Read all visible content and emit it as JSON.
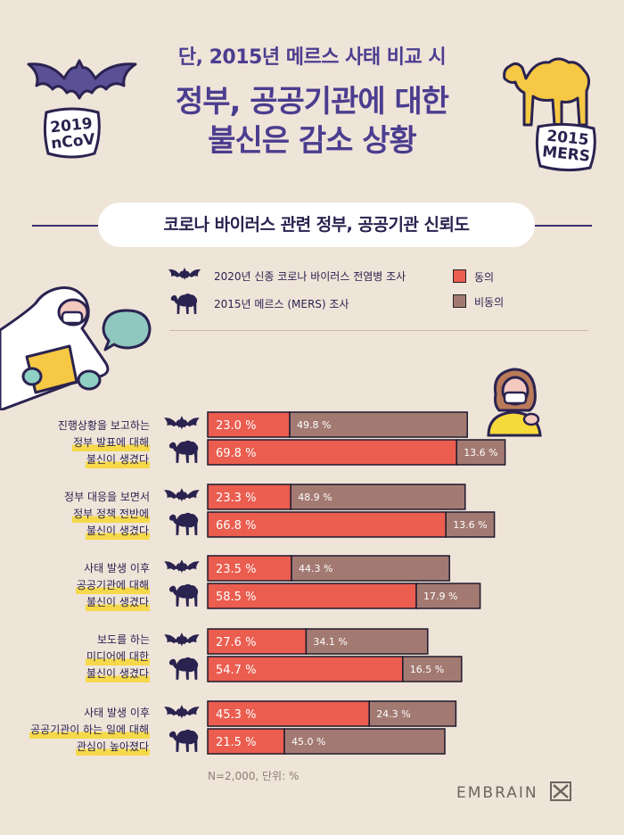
{
  "header": {
    "subtitle": "단, 2015년 메르스 사태 비교 시",
    "title_line1": "정부, 공공기관에 대한",
    "title_line2": "불신은 감소 상황"
  },
  "stickers": {
    "left_line1": "2019",
    "left_line2": "nCoV",
    "right_line1": "2015",
    "right_line2": "MERS"
  },
  "section_title": "코로나 바이러스 관련 정부, 공공기관 신뢰도",
  "legend": {
    "survey_2020": "2020년 신종 코로나 바이러스 전염병 조사",
    "survey_2015": "2015년 메르스 (MERS) 조사",
    "agree": "동의",
    "disagree": "비동의"
  },
  "colors": {
    "agree": "#ea5d4f",
    "disagree": "#a37a72",
    "purple": "#4b3d8f",
    "highlight": "#f5d94a"
  },
  "chart_data": {
    "type": "bar",
    "orientation": "horizontal-stacked",
    "unit": "%",
    "categories": [
      [
        "진행상황을 보고하는",
        "정부 발표에 대해",
        "불신이 생겼다"
      ],
      [
        "정부 대응을 보면서",
        "정부 정책 전반에",
        "불신이 생겼다"
      ],
      [
        "사태 발생 이후",
        "공공기관에 대해",
        "불신이 생겼다"
      ],
      [
        "보도를 하는",
        "미디어에 대한",
        "불신이 생겼다"
      ],
      [
        "사태 발생 이후",
        "공공기관이 하는 일에 대해",
        "관심이 높아졌다"
      ]
    ],
    "series": [
      {
        "name": "2020년 신종 코로나 바이러스 전염병 조사",
        "agree": [
          23.0,
          23.3,
          23.5,
          27.6,
          45.3
        ],
        "disagree": [
          49.8,
          48.9,
          44.3,
          34.1,
          24.3
        ]
      },
      {
        "name": "2015년 메르스 (MERS) 조사",
        "agree": [
          69.8,
          66.8,
          58.5,
          54.7,
          21.5
        ],
        "disagree": [
          13.6,
          13.6,
          17.9,
          16.5,
          45.0
        ]
      }
    ],
    "agree_labels_2020": [
      "23.0",
      "23.3",
      "23.5",
      "27.6",
      "45.3"
    ],
    "disagree_labels_2020": [
      "49.8",
      "48.9",
      "44.3",
      "34.1",
      "24.3"
    ],
    "agree_labels_2015": [
      "69.8",
      "66.8",
      "58.5",
      "54.7",
      "21.5"
    ],
    "disagree_labels_2015": [
      "13.6",
      "13.6",
      "17.9",
      "16.5",
      "45.0"
    ],
    "value_suffix": "%"
  },
  "footnote": "N=2,000, 단위: %",
  "brand": "EMBRAIN"
}
